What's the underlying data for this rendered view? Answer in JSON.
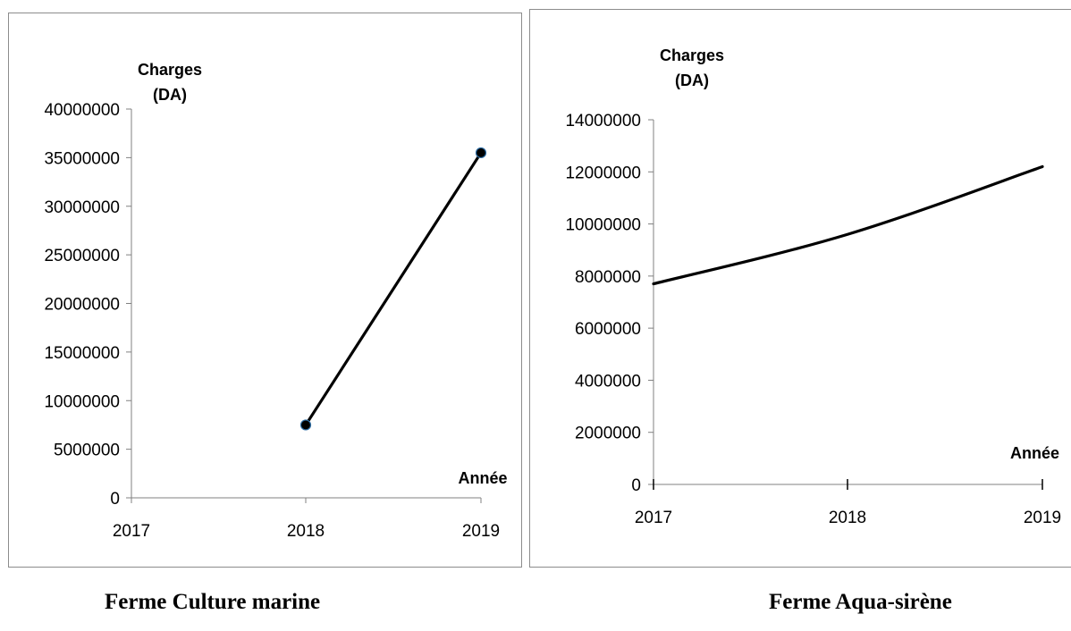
{
  "colors": {
    "line": "#000000",
    "marker_fill": "#000000",
    "marker_edge": "#2e6da4",
    "axis": "#808080",
    "frame": "#8c8c8c"
  },
  "captions": {
    "left": "Ferme Culture marine",
    "right": "Ferme Aqua-sirène"
  },
  "chart_data": [
    {
      "type": "line",
      "ylabel_line1": "Charges",
      "ylabel_line2": "(DA)",
      "xlabel": "Année",
      "categories": [
        "2017",
        "2018",
        "2019"
      ],
      "series": [
        {
          "values": [
            null,
            7500000,
            35500000
          ],
          "markers": true,
          "smooth": false
        }
      ],
      "yticks": [
        0,
        5000000,
        10000000,
        15000000,
        20000000,
        25000000,
        30000000,
        35000000,
        40000000
      ],
      "ylim": [
        0,
        40000000
      ],
      "grid": false,
      "legend": "none"
    },
    {
      "type": "line",
      "ylabel_line1": "Charges",
      "ylabel_line2": "(DA)",
      "xlabel": "Année",
      "categories": [
        "2017",
        "2018",
        "2019"
      ],
      "series": [
        {
          "values": [
            7700000,
            9600000,
            12200000
          ],
          "markers": false,
          "smooth": true
        }
      ],
      "yticks": [
        0,
        2000000,
        4000000,
        6000000,
        8000000,
        10000000,
        12000000,
        14000000
      ],
      "ylim": [
        0,
        14000000
      ],
      "grid": false,
      "legend": "none"
    }
  ]
}
